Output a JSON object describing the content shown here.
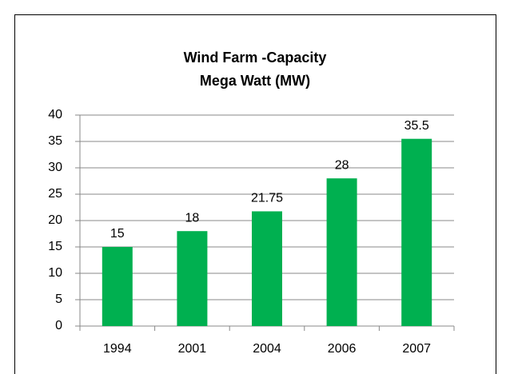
{
  "chart_data": {
    "type": "bar",
    "title": [
      "Wind Farm -Capacity",
      "Mega Watt (MW)"
    ],
    "categories": [
      "1994",
      "2001",
      "2004",
      "2006",
      "2007"
    ],
    "values": [
      15,
      18,
      21.75,
      28,
      35.5
    ],
    "color": "#00b050",
    "ylim": [
      0,
      40
    ],
    "yticks": [
      0,
      5,
      10,
      15,
      20,
      25,
      30,
      35,
      40
    ],
    "grid": true
  }
}
